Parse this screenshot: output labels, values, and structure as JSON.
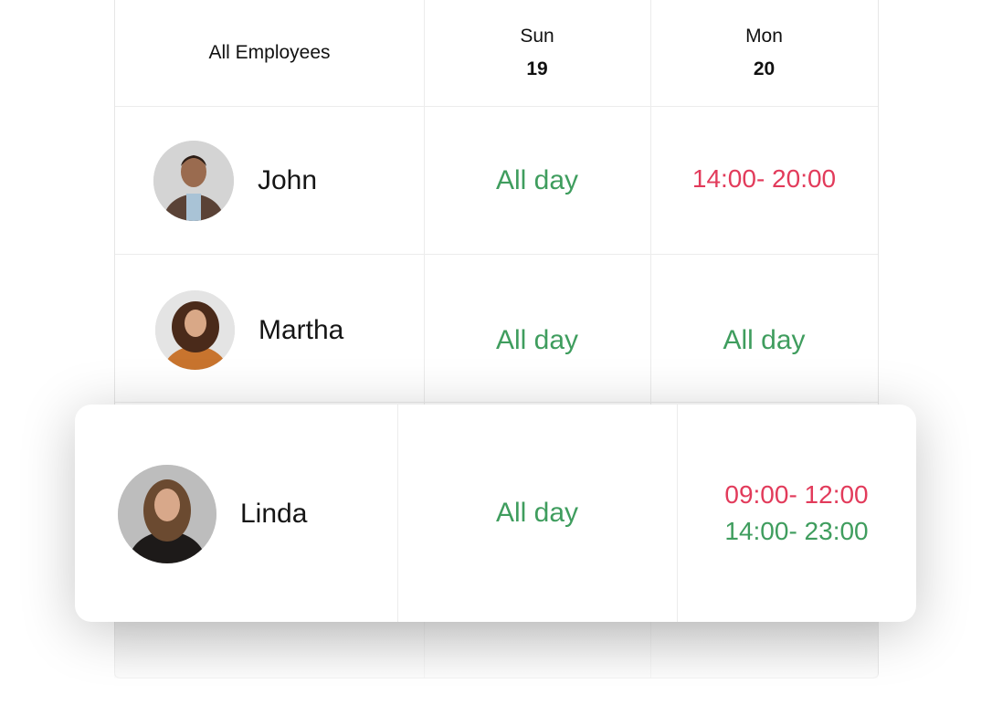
{
  "header": {
    "employees_label": "All Employees",
    "days": [
      {
        "weekday": "Sun",
        "date": "19"
      },
      {
        "weekday": "Mon",
        "date": "20"
      }
    ]
  },
  "rows": [
    {
      "name": "John",
      "sun": "All day",
      "mon": [
        "14:00- 20:00"
      ],
      "mon_colors": [
        "#e23b5b"
      ]
    },
    {
      "name": "Martha",
      "sun": "All day",
      "mon": [
        "All day"
      ],
      "mon_colors": [
        "#3f9d5e"
      ]
    },
    {
      "name": "Linda",
      "sun": "All day",
      "mon": [
        "09:00- 12:00",
        "14:00- 23:00"
      ],
      "mon_colors": [
        "#e23b5b",
        "#3f9d5e"
      ]
    }
  ],
  "colors": {
    "available": "#3f9d5e",
    "partial": "#e23b5b"
  }
}
